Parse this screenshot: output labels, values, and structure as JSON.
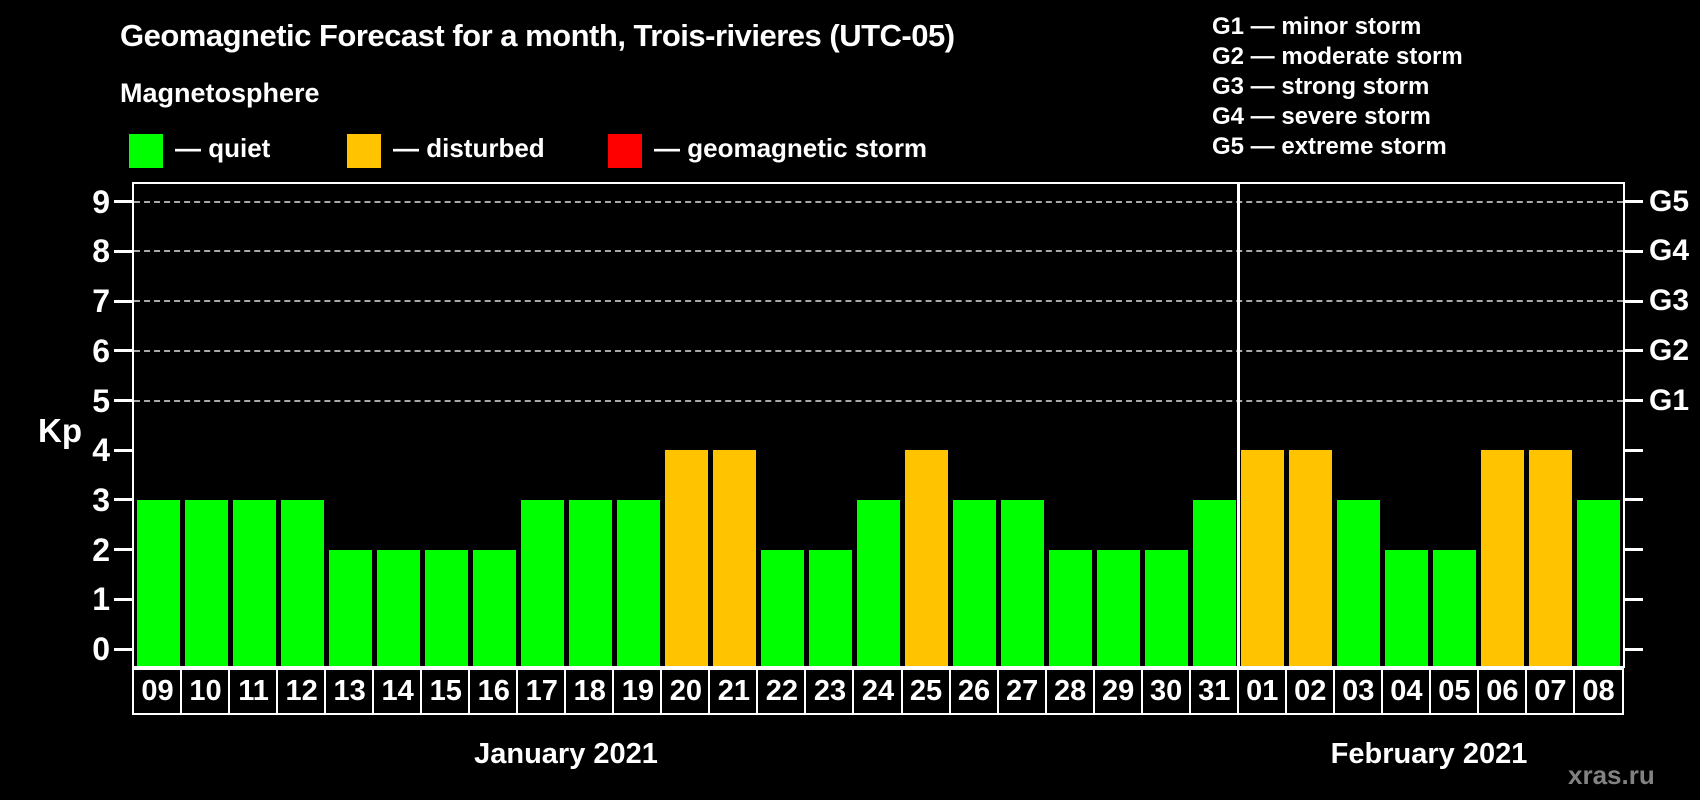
{
  "title": "Geomagnetic Forecast for a month, Trois-rivieres (UTC-05)",
  "legend": {
    "heading": "Magnetosphere",
    "items": [
      {
        "name": "quiet",
        "label": "— quiet",
        "color": "#00ff00"
      },
      {
        "name": "disturbed",
        "label": "— disturbed",
        "color": "#ffc300"
      },
      {
        "name": "geomagnetic-storm",
        "label": "— geomagnetic storm",
        "color": "#ff0000"
      }
    ]
  },
  "g_scale_legend": [
    "G1 — minor storm",
    "G2 — moderate storm",
    "G3 — strong storm",
    "G4 — severe storm",
    "G5 — extreme storm"
  ],
  "watermark": "xras.ru",
  "chart_data": {
    "type": "bar",
    "title": "Geomagnetic Forecast for a month, Trois-rivieres (UTC-05)",
    "ylabel": "Kp",
    "ylim": [
      0,
      9
    ],
    "y_ticks": [
      0,
      1,
      2,
      3,
      4,
      5,
      6,
      7,
      8,
      9
    ],
    "gridlines_at": [
      5,
      6,
      7,
      8,
      9
    ],
    "grid": "dashed, only at Kp 5-9",
    "right_axis_labels": [
      {
        "label": "G1",
        "kp": 5
      },
      {
        "label": "G2",
        "kp": 6
      },
      {
        "label": "G3",
        "kp": 7
      },
      {
        "label": "G4",
        "kp": 8
      },
      {
        "label": "G5",
        "kp": 9
      }
    ],
    "categories": [
      "09",
      "10",
      "11",
      "12",
      "13",
      "14",
      "15",
      "16",
      "17",
      "18",
      "19",
      "20",
      "21",
      "22",
      "23",
      "24",
      "25",
      "26",
      "27",
      "28",
      "29",
      "30",
      "31",
      "01",
      "02",
      "03",
      "04",
      "05",
      "06",
      "07",
      "08"
    ],
    "values": [
      3,
      3,
      3,
      3,
      2,
      2,
      2,
      2,
      3,
      3,
      3,
      4,
      4,
      2,
      2,
      3,
      4,
      3,
      3,
      2,
      2,
      2,
      3,
      4,
      4,
      3,
      2,
      2,
      4,
      4,
      3
    ],
    "statuses": [
      "quiet",
      "quiet",
      "quiet",
      "quiet",
      "quiet",
      "quiet",
      "quiet",
      "quiet",
      "quiet",
      "quiet",
      "quiet",
      "disturbed",
      "disturbed",
      "quiet",
      "quiet",
      "quiet",
      "disturbed",
      "quiet",
      "quiet",
      "quiet",
      "quiet",
      "quiet",
      "quiet",
      "disturbed",
      "disturbed",
      "quiet",
      "quiet",
      "quiet",
      "disturbed",
      "disturbed",
      "quiet"
    ],
    "status_colors": {
      "quiet": "#00ff00",
      "disturbed": "#ffc300",
      "geomagnetic-storm": "#ff0000"
    },
    "months": [
      {
        "label": "January 2021",
        "day_count": 23
      },
      {
        "label": "February 2021",
        "day_count": 8
      }
    ]
  }
}
